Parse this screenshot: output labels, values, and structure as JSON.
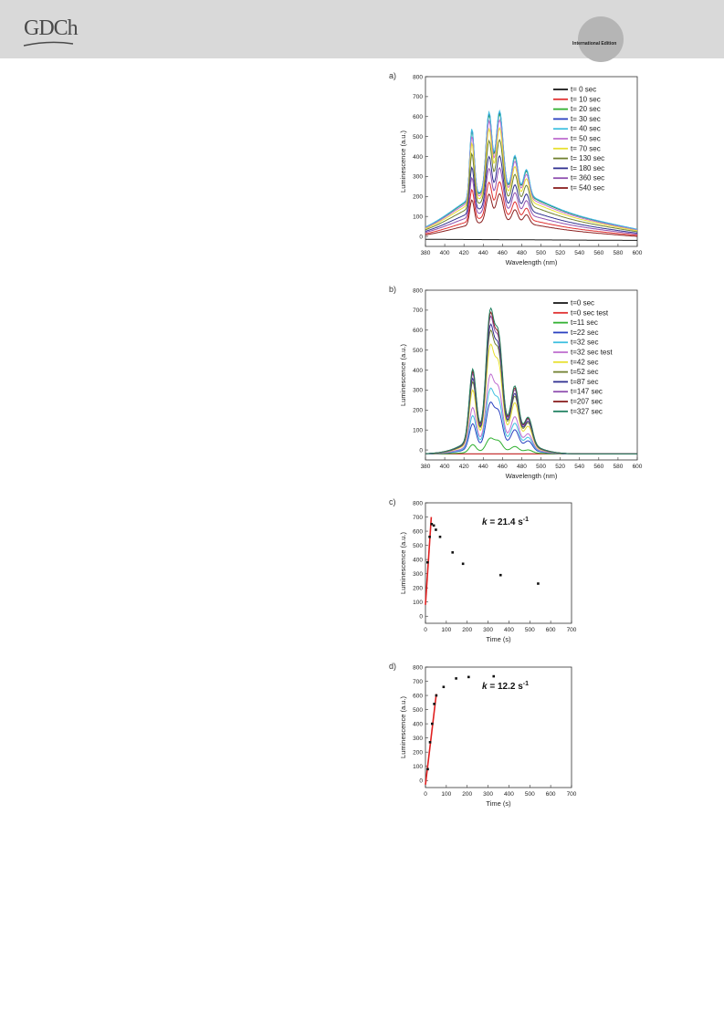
{
  "header": {
    "logo_text": "GDCh",
    "edition_label": "International Edition"
  },
  "chart_data": [
    {
      "panel_label": "a)",
      "type": "line",
      "xlabel": "Wavelength (nm)",
      "ylabel": "Luminescence (a.u.)",
      "xlim": [
        380,
        600
      ],
      "ylim": [
        -50,
        800
      ],
      "xticks": [
        380,
        400,
        420,
        440,
        460,
        480,
        500,
        520,
        540,
        560,
        580,
        600
      ],
      "yticks": [
        0,
        100,
        200,
        300,
        400,
        500,
        600,
        700,
        800
      ],
      "legend_position": "top-right",
      "series": [
        {
          "name": "t= 0 sec",
          "color": "#1a1a1a",
          "peak": 0
        },
        {
          "name": "t= 10 sec",
          "color": "#e03030",
          "peak": 290
        },
        {
          "name": "t= 20 sec",
          "color": "#30b030",
          "peak": 630
        },
        {
          "name": "t= 30 sec",
          "color": "#2a40c0",
          "peak": 640
        },
        {
          "name": "t= 40 sec",
          "color": "#40c0e0",
          "peak": 645
        },
        {
          "name": "t= 50 sec",
          "color": "#c070d0",
          "peak": 600
        },
        {
          "name": "t= 70 sec",
          "color": "#e8e030",
          "peak": 560
        },
        {
          "name": "t= 130 sec",
          "color": "#708030",
          "peak": 500
        },
        {
          "name": "t= 180 sec",
          "color": "#303090",
          "peak": 420
        },
        {
          "name": "t= 360 sec",
          "color": "#9050b0",
          "peak": 360
        },
        {
          "name": "t= 540 sec",
          "color": "#8b2020",
          "peak": 230
        }
      ]
    },
    {
      "panel_label": "b)",
      "type": "line",
      "xlabel": "Wavelength (nm)",
      "ylabel": "Luminescence (a.u.)",
      "xlim": [
        380,
        600
      ],
      "ylim": [
        -50,
        800
      ],
      "xticks": [
        380,
        400,
        420,
        440,
        460,
        480,
        500,
        520,
        540,
        560,
        580,
        600
      ],
      "yticks": [
        0,
        100,
        200,
        300,
        400,
        500,
        600,
        700,
        800
      ],
      "legend_position": "top-right",
      "series": [
        {
          "name": "t=0 sec",
          "color": "#1a1a1a",
          "peak": 0
        },
        {
          "name": "t=0 sec test",
          "color": "#e03030",
          "peak": 0
        },
        {
          "name": "t=11 sec",
          "color": "#30b030",
          "peak": 80
        },
        {
          "name": "t=22 sec",
          "color": "#2a40c0",
          "peak": 260
        },
        {
          "name": "t=32 sec",
          "color": "#40c0e0",
          "peak": 330
        },
        {
          "name": "t=32 sec test",
          "color": "#c070d0",
          "peak": 400
        },
        {
          "name": "t=42 sec",
          "color": "#e8e030",
          "peak": 550
        },
        {
          "name": "t=52 sec",
          "color": "#708030",
          "peak": 620
        },
        {
          "name": "t=87 sec",
          "color": "#303090",
          "peak": 650
        },
        {
          "name": "t=147 sec",
          "color": "#9050b0",
          "peak": 690
        },
        {
          "name": "t=207 sec",
          "color": "#8b2020",
          "peak": 710
        },
        {
          "name": "t=327 sec",
          "color": "#208060",
          "peak": 730
        }
      ]
    },
    {
      "panel_label": "c)",
      "type": "scatter",
      "annotation": "k = 21.4 s",
      "annotation_sup": "-1",
      "xlabel": "Time (s)",
      "ylabel": "Luminescence (a.u.)",
      "xlim": [
        0,
        700
      ],
      "ylim": [
        -50,
        800
      ],
      "xticks": [
        0,
        100,
        200,
        300,
        400,
        500,
        600,
        700
      ],
      "yticks": [
        0,
        100,
        200,
        300,
        400,
        500,
        600,
        700,
        800
      ],
      "points": [
        [
          10,
          380
        ],
        [
          20,
          560
        ],
        [
          30,
          650
        ],
        [
          40,
          640
        ],
        [
          50,
          610
        ],
        [
          70,
          560
        ],
        [
          130,
          450
        ],
        [
          180,
          370
        ],
        [
          360,
          290
        ],
        [
          540,
          230
        ]
      ],
      "fit_line": [
        [
          0,
          80
        ],
        [
          28,
          700
        ]
      ]
    },
    {
      "panel_label": "d)",
      "type": "scatter",
      "annotation": "k = 12.2 s",
      "annotation_sup": "-1",
      "xlabel": "Time (s)",
      "ylabel": "Luminescence (a.u.)",
      "xlim": [
        0,
        700
      ],
      "ylim": [
        -50,
        800
      ],
      "xticks": [
        0,
        100,
        200,
        300,
        400,
        500,
        600,
        700
      ],
      "yticks": [
        0,
        100,
        200,
        300,
        400,
        500,
        600,
        700,
        800
      ],
      "points": [
        [
          11,
          80
        ],
        [
          22,
          270
        ],
        [
          32,
          400
        ],
        [
          42,
          540
        ],
        [
          52,
          600
        ],
        [
          87,
          660
        ],
        [
          147,
          720
        ],
        [
          207,
          730
        ],
        [
          327,
          735
        ]
      ],
      "fit_line": [
        [
          0,
          -30
        ],
        [
          52,
          610
        ]
      ]
    }
  ]
}
